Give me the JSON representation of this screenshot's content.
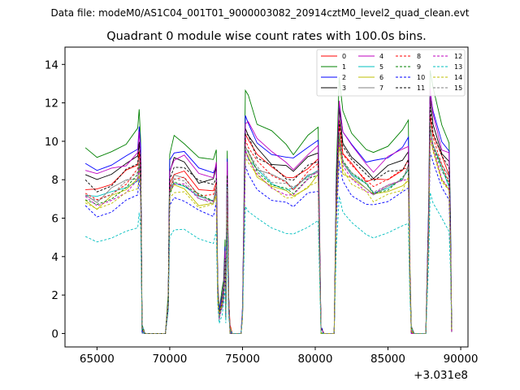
{
  "chart_data": {
    "type": "line",
    "supertitle": "Data file: modeM0/AS1C04_001T01_9000003082_20914cztM0_level2_quad_clean.evt",
    "title": "Quadrant 0 module wise count rates with 100.0s bins.",
    "xlabel": "",
    "ylabel": "",
    "x_offset_label": "+3.031e8",
    "xlim": [
      62800,
      90500
    ],
    "ylim": [
      -0.7,
      14.9
    ],
    "x_ticks": [
      65000,
      70000,
      75000,
      80000,
      85000,
      90000
    ],
    "x_tick_labels": [
      "65000",
      "70000",
      "75000",
      "80000",
      "85000",
      "90000"
    ],
    "y_ticks": [
      0,
      2,
      4,
      6,
      8,
      10,
      12,
      14
    ],
    "y_tick_labels": [
      "0",
      "2",
      "4",
      "6",
      "8",
      "10",
      "12",
      "14"
    ],
    "grid": false,
    "legend_position": "top-right",
    "base_profile": [
      [
        64200,
        7.2
      ],
      [
        65000,
        6.9
      ],
      [
        66000,
        7.2
      ],
      [
        67000,
        7.7
      ],
      [
        67800,
        8.1
      ],
      [
        67900,
        8.9
      ],
      [
        68000,
        7.9
      ],
      [
        68100,
        0.2
      ],
      [
        68300,
        0
      ],
      [
        69700,
        0
      ],
      [
        69900,
        1.5
      ],
      [
        70000,
        7.4
      ],
      [
        70300,
        7.9
      ],
      [
        71000,
        7.7
      ],
      [
        72000,
        7.1
      ],
      [
        73000,
        6.9
      ],
      [
        73200,
        7.5
      ],
      [
        73300,
        2.0
      ],
      [
        73400,
        0.9
      ],
      [
        73600,
        1.6
      ],
      [
        73700,
        2.1
      ],
      [
        73800,
        3.6
      ],
      [
        73850,
        1.0
      ],
      [
        73950,
        7.5
      ],
      [
        74050,
        1.5
      ],
      [
        74150,
        0.2
      ],
      [
        74300,
        0
      ],
      [
        74900,
        0
      ],
      [
        75000,
        1.0
      ],
      [
        75200,
        9.5
      ],
      [
        75400,
        9.3
      ],
      [
        76000,
        8.5
      ],
      [
        77000,
        7.9
      ],
      [
        78000,
        7.6
      ],
      [
        78500,
        7.4
      ],
      [
        79500,
        8.0
      ],
      [
        80200,
        8.4
      ],
      [
        80300,
        4.0
      ],
      [
        80400,
        0.2
      ],
      [
        80600,
        0
      ],
      [
        81300,
        0
      ],
      [
        81450,
        6.5
      ],
      [
        81650,
        10.2
      ],
      [
        81900,
        8.8
      ],
      [
        82500,
        8.2
      ],
      [
        83500,
        7.6
      ],
      [
        84000,
        7.3
      ],
      [
        85000,
        7.7
      ],
      [
        86000,
        8.0
      ],
      [
        86400,
        8.4
      ],
      [
        86500,
        3.0
      ],
      [
        86600,
        0.2
      ],
      [
        86800,
        0
      ],
      [
        87600,
        0
      ],
      [
        87800,
        5.5
      ],
      [
        87900,
        10.7
      ],
      [
        88100,
        9.8
      ],
      [
        88700,
        8.4
      ],
      [
        89200,
        7.8
      ],
      [
        89300,
        4.5
      ],
      [
        89380,
        0.3
      ]
    ],
    "series": [
      {
        "name": "0",
        "color": "#ff0000",
        "dash": "solid",
        "scale": 1.07
      },
      {
        "name": "1",
        "color": "#008000",
        "dash": "solid",
        "scale": 1.3
      },
      {
        "name": "2",
        "color": "#0000ff",
        "dash": "solid",
        "scale": 1.2
      },
      {
        "name": "3",
        "color": "#000000",
        "dash": "solid",
        "scale": 1.13
      },
      {
        "name": "4",
        "color": "#bf00bf",
        "dash": "solid",
        "scale": 1.17
      },
      {
        "name": "5",
        "color": "#00bfbf",
        "dash": "solid",
        "scale": 1.0
      },
      {
        "name": "6",
        "color": "#bfbf00",
        "dash": "solid",
        "scale": 0.97
      },
      {
        "name": "7",
        "color": "#808080",
        "dash": "solid",
        "scale": 1.02
      },
      {
        "name": "8",
        "color": "#ff0000",
        "dash": "dashed",
        "scale": 1.04
      },
      {
        "name": "9",
        "color": "#008000",
        "dash": "dashed",
        "scale": 1.0
      },
      {
        "name": "10",
        "color": "#0000ff",
        "dash": "dashed",
        "scale": 0.9
      },
      {
        "name": "11",
        "color": "#000000",
        "dash": "dashed",
        "scale": 1.09
      },
      {
        "name": "12",
        "color": "#bf00bf",
        "dash": "dashed",
        "scale": 0.98
      },
      {
        "name": "13",
        "color": "#00bfbf",
        "dash": "dashed",
        "scale": 0.7
      },
      {
        "name": "14",
        "color": "#bfbf00",
        "dash": "dashed",
        "scale": 0.95
      },
      {
        "name": "15",
        "color": "#808080",
        "dash": "dashed",
        "scale": 1.01
      }
    ]
  }
}
